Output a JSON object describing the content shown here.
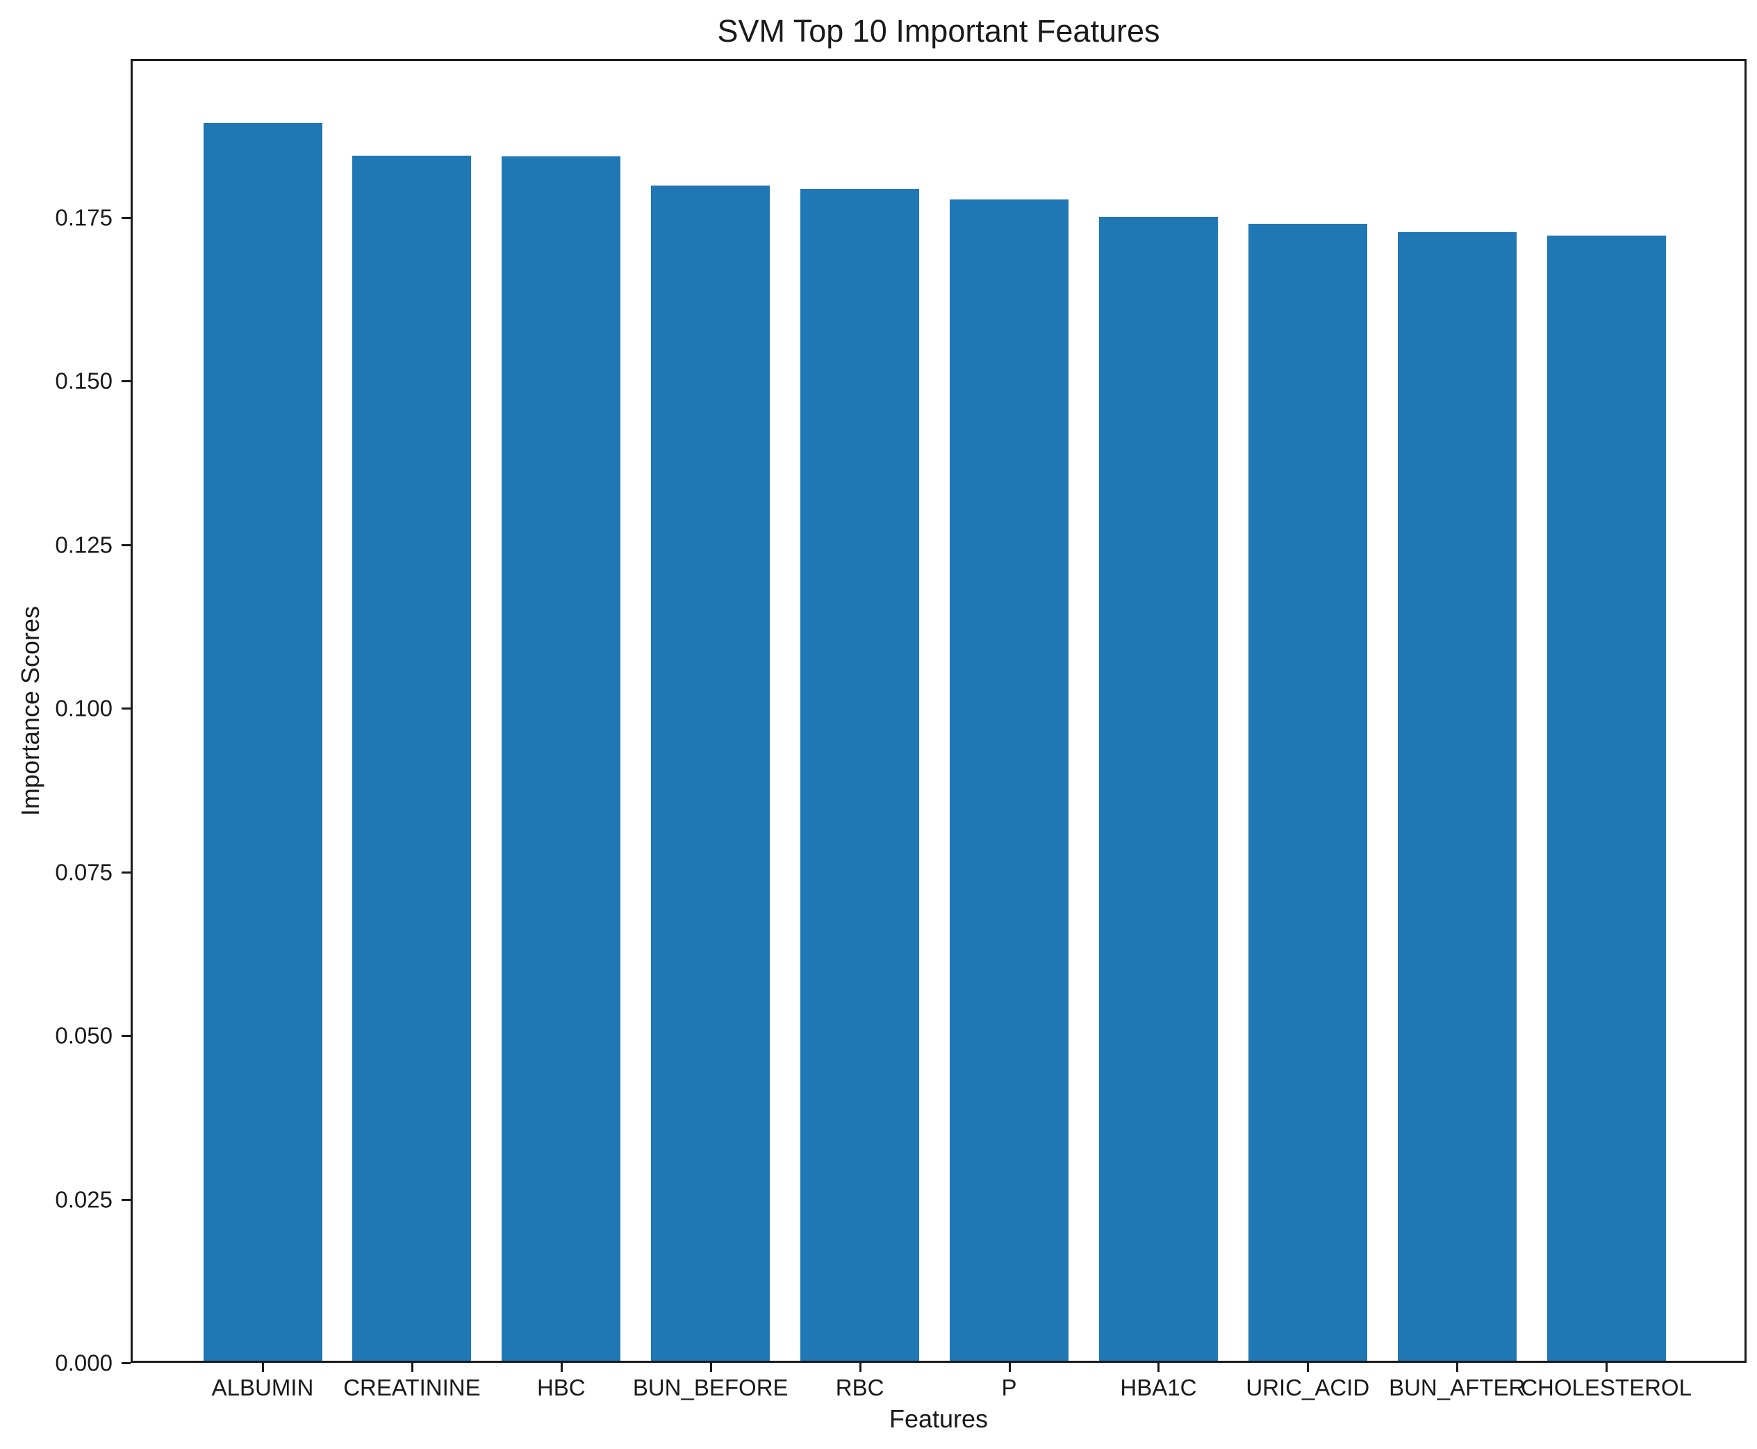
{
  "chart_data": {
    "type": "bar",
    "title": "SVM Top 10 Important Features",
    "xlabel": "Features",
    "ylabel": "Importance Scores",
    "categories": [
      "ALBUMIN",
      "CREATININE",
      "HBC",
      "BUN_BEFORE",
      "RBC",
      "P",
      "HBA1C",
      "URIC_ACID",
      "BUN_AFTER",
      "CHOLESTEROL"
    ],
    "values": [
      0.1891,
      0.1841,
      0.184,
      0.1796,
      0.179,
      0.1774,
      0.1748,
      0.1737,
      0.1724,
      0.1719
    ],
    "yticks": [
      0.0,
      0.025,
      0.05,
      0.075,
      0.1,
      0.125,
      0.15,
      0.175
    ],
    "ytick_decimals": 3,
    "ylim": [
      0,
      0.1992
    ],
    "bar_color": "#1f77b4",
    "grid": false,
    "legend_position": "none"
  }
}
